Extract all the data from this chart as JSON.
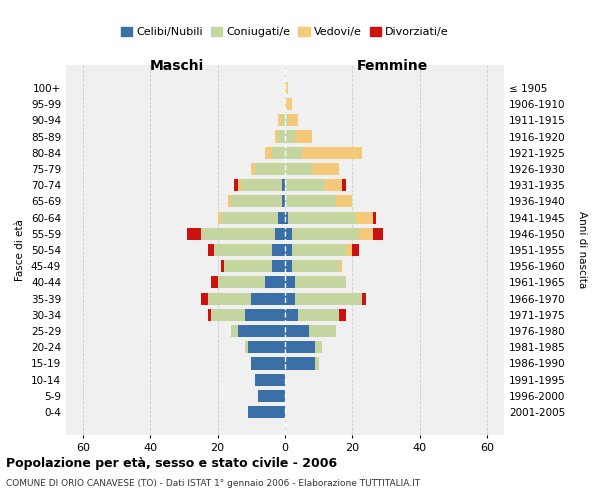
{
  "age_groups": [
    "0-4",
    "5-9",
    "10-14",
    "15-19",
    "20-24",
    "25-29",
    "30-34",
    "35-39",
    "40-44",
    "45-49",
    "50-54",
    "55-59",
    "60-64",
    "65-69",
    "70-74",
    "75-79",
    "80-84",
    "85-89",
    "90-94",
    "95-99",
    "100+"
  ],
  "birth_years": [
    "2001-2005",
    "1996-2000",
    "1991-1995",
    "1986-1990",
    "1981-1985",
    "1976-1980",
    "1971-1975",
    "1966-1970",
    "1961-1965",
    "1956-1960",
    "1951-1955",
    "1946-1950",
    "1941-1945",
    "1936-1940",
    "1931-1935",
    "1926-1930",
    "1921-1925",
    "1916-1920",
    "1911-1915",
    "1906-1910",
    "≤ 1905"
  ],
  "colors": {
    "celibi": "#3a6fa8",
    "coniugati": "#c5d5a0",
    "vedovi": "#f5c97a",
    "divorziati": "#cc1111"
  },
  "male": {
    "celibi": [
      11,
      8,
      9,
      10,
      11,
      14,
      12,
      10,
      6,
      4,
      4,
      3,
      2,
      1,
      1,
      0,
      0,
      0,
      0,
      0,
      0
    ],
    "coniugati": [
      0,
      0,
      0,
      0,
      1,
      2,
      10,
      13,
      14,
      14,
      17,
      22,
      17,
      15,
      12,
      9,
      4,
      2,
      1,
      0,
      0
    ],
    "vedovi": [
      0,
      0,
      0,
      0,
      0,
      0,
      0,
      0,
      0,
      0,
      0,
      0,
      1,
      1,
      1,
      1,
      2,
      1,
      1,
      0,
      0
    ],
    "divorziati": [
      0,
      0,
      0,
      0,
      0,
      0,
      1,
      2,
      2,
      1,
      2,
      4,
      0,
      0,
      1,
      0,
      0,
      0,
      0,
      0,
      0
    ]
  },
  "female": {
    "nubili": [
      0,
      0,
      0,
      9,
      9,
      7,
      4,
      3,
      3,
      2,
      2,
      2,
      1,
      0,
      0,
      0,
      0,
      0,
      0,
      0,
      0
    ],
    "coniugati": [
      0,
      0,
      0,
      1,
      2,
      8,
      12,
      20,
      15,
      14,
      16,
      20,
      20,
      15,
      12,
      8,
      5,
      3,
      1,
      0,
      0
    ],
    "vedovi": [
      0,
      0,
      0,
      0,
      0,
      0,
      0,
      0,
      0,
      1,
      2,
      4,
      5,
      5,
      5,
      8,
      18,
      5,
      3,
      2,
      1
    ],
    "divorziati": [
      0,
      0,
      0,
      0,
      0,
      0,
      2,
      1,
      0,
      0,
      2,
      3,
      1,
      0,
      1,
      0,
      0,
      0,
      0,
      0,
      0
    ]
  },
  "xlim": 65,
  "title": "Popolazione per età, sesso e stato civile - 2006",
  "subtitle": "COMUNE DI ORIO CANAVESE (TO) - Dati ISTAT 1° gennaio 2006 - Elaborazione TUTTITALIA.IT",
  "ylabel_left": "Fasce di età",
  "ylabel_right": "Anni di nascita",
  "xlabel_left": "Maschi",
  "xlabel_right": "Femmine",
  "legend_labels": [
    "Celibi/Nubili",
    "Coniugati/e",
    "Vedovi/e",
    "Divorziati/e"
  ],
  "bg_color": "#f0f0f0",
  "grid_color": "#cccccc"
}
